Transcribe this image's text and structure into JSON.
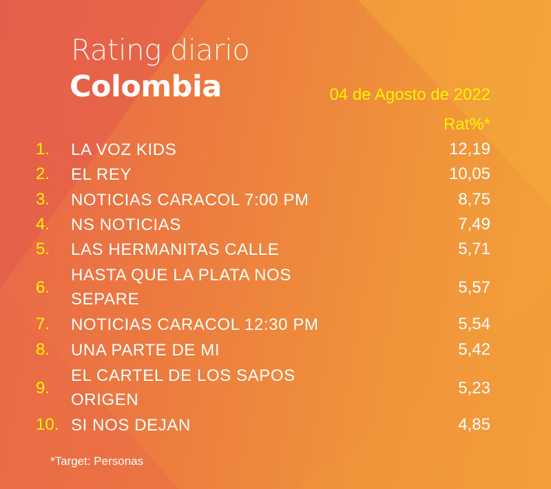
{
  "header": {
    "title_line1": "Rating diario",
    "title_line2": "Colombia",
    "date": "04 de Agosto de 2022",
    "column_label": "Rat%*"
  },
  "ratings": [
    {
      "rank": "1.",
      "program": "LA VOZ KIDS",
      "rating": "12,19"
    },
    {
      "rank": "2.",
      "program": "EL REY",
      "rating": "10,05"
    },
    {
      "rank": "3.",
      "program": "NOTICIAS CARACOL 7:00 PM",
      "rating": "8,75"
    },
    {
      "rank": "4.",
      "program": "NS NOTICIAS",
      "rating": "7,49"
    },
    {
      "rank": "5.",
      "program": "LAS HERMANITAS CALLE",
      "rating": "5,71"
    },
    {
      "rank": "6.",
      "program": "HASTA QUE LA PLATA NOS SEPARE",
      "rating": "5,57"
    },
    {
      "rank": "7.",
      "program": "NOTICIAS CARACOL 12:30 PM",
      "rating": "5,54"
    },
    {
      "rank": "8.",
      "program": "UNA PARTE DE MI",
      "rating": "5,42"
    },
    {
      "rank": "9.",
      "program": "EL CARTEL DE LOS SAPOS ORIGEN",
      "rating": "5,23"
    },
    {
      "rank": "10.",
      "program": "SI NOS DEJAN",
      "rating": "4,85"
    }
  ],
  "footnote": "*Target: Personas",
  "colors": {
    "background_left": "#e8654a",
    "background_right": "#f3a23a",
    "accent_yellow": "#fff200",
    "text_white": "#ffffff"
  }
}
